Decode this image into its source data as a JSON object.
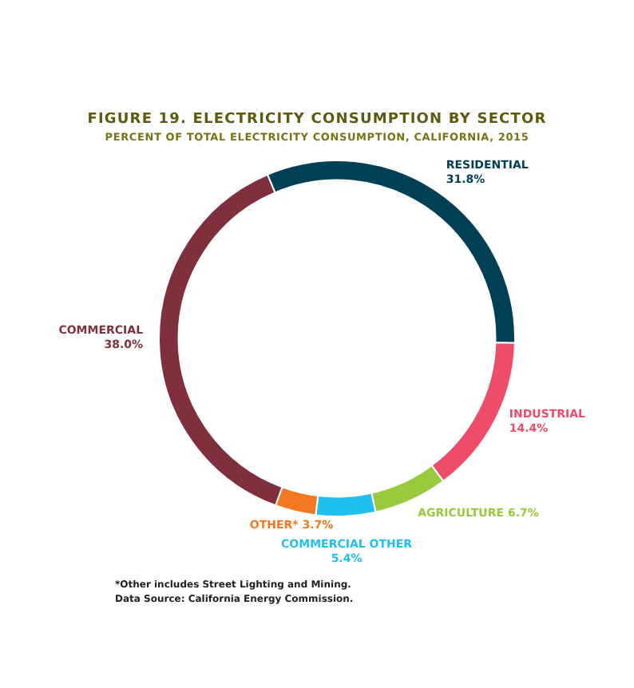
{
  "chart_data": {
    "type": "donut",
    "title": "FIGURE 19. ELECTRICITY CONSUMPTION BY SECTOR",
    "subtitle": "PERCENT OF TOTAL ELECTRICITY CONSUMPTION, CALIFORNIA, 2015",
    "categories": [
      "RESIDENTIAL",
      "INDUSTRIAL",
      "AGRICULTURE",
      "COMMERCIAL OTHER",
      "OTHER*",
      "COMMERCIAL"
    ],
    "values": [
      31.8,
      14.4,
      6.7,
      5.4,
      3.7,
      38.0
    ],
    "value_labels": [
      "31.8%",
      "14.4%",
      "6.7%",
      "5.4%",
      "3.7%",
      "38.0%"
    ],
    "colors": [
      "#003f56",
      "#ee4d6a",
      "#99c93c",
      "#1fbff0",
      "#f47721",
      "#80303c"
    ],
    "annotations": [
      "*Other includes Street Lighting and Mining.",
      "Data Source: California Energy Commission."
    ]
  }
}
